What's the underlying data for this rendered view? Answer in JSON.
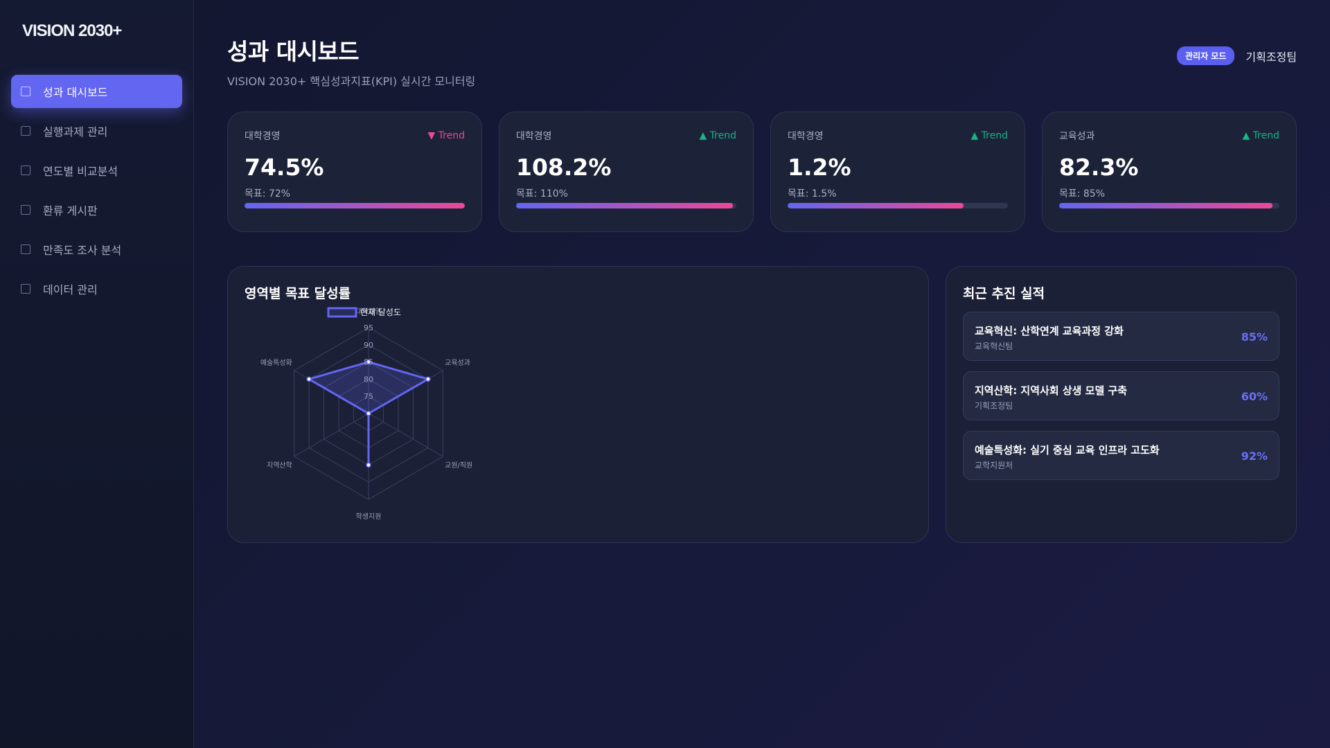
{
  "brand": "VISION 2030+",
  "sidebar": {
    "items": [
      {
        "label": "성과 대시보드",
        "icon": "dashboard-icon",
        "active": true
      },
      {
        "label": "실행과제 관리",
        "icon": "tasks-icon",
        "active": false
      },
      {
        "label": "연도별 비교분석",
        "icon": "compare-icon",
        "active": false
      },
      {
        "label": "환류 게시판",
        "icon": "board-icon",
        "active": false
      },
      {
        "label": "만족도 조사 분석",
        "icon": "survey-icon",
        "active": false
      },
      {
        "label": "데이터 관리",
        "icon": "database-icon",
        "active": false
      }
    ]
  },
  "header": {
    "title": "성과 대시보드",
    "subtitle": "VISION 2030+ 핵심성과지표(KPI) 실시간 모니터링",
    "badge": "관리자 모드",
    "team": "기획조정팀"
  },
  "kpis": [
    {
      "category": "대학경영",
      "trend": "▼ Trend",
      "direction": "down",
      "value": "74.5%",
      "target": "목표: 72%",
      "progress": 1.0
    },
    {
      "category": "대학경영",
      "trend": "▲ Trend",
      "direction": "up",
      "value": "108.2%",
      "target": "목표: 110%",
      "progress": 0.984
    },
    {
      "category": "대학경영",
      "trend": "▲ Trend",
      "direction": "up",
      "value": "1.2%",
      "target": "목표: 1.5%",
      "progress": 0.8
    },
    {
      "category": "교육성과",
      "trend": "▲ Trend",
      "direction": "up",
      "value": "82.3%",
      "target": "목표: 85%",
      "progress": 0.968
    }
  ],
  "colors": {
    "accent": "#6366f1",
    "pink": "#ec4899",
    "trend_up": "#18b48a",
    "trend_down": "#ec4899"
  },
  "chart_panel": {
    "title": "영역별 목표 달성률"
  },
  "chart_data": {
    "type": "radar",
    "categories": [
      "대학경영",
      "교육성과",
      "교원/직원",
      "학생지원",
      "지역산학",
      "예술특성화"
    ],
    "series": [
      {
        "name": "현재 달성도",
        "values": [
          85,
          90,
          70,
          85,
          70,
          90
        ]
      }
    ],
    "rlim": [
      70,
      95
    ],
    "ticks": [
      75,
      80,
      85,
      90,
      95
    ],
    "legend": "top"
  },
  "recent": {
    "title": "최근 추진 실적",
    "items": [
      {
        "title": "교육혁신: 산학연계 교육과정 강화",
        "team": "교육혁신팀",
        "pct": "85%"
      },
      {
        "title": "지역산학: 지역사회 상생 모델 구축",
        "team": "기획조정팀",
        "pct": "60%"
      },
      {
        "title": "예술특성화: 실기 중심 교육 인프라 고도화",
        "team": "교학지원처",
        "pct": "92%"
      }
    ]
  }
}
